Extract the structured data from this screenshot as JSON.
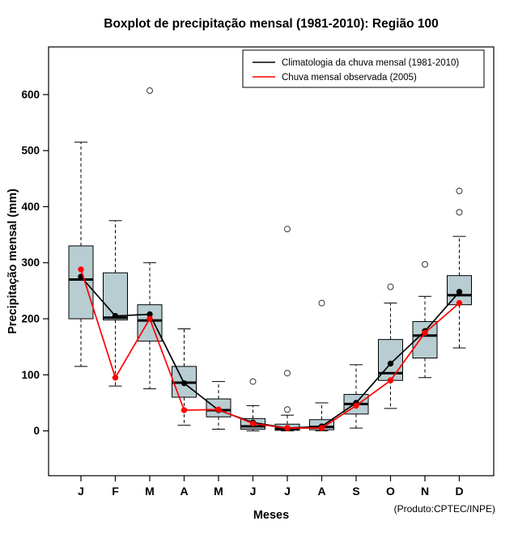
{
  "chart_data": {
    "type": "boxplot",
    "title": "Boxplot de precipitação mensal (1981-2010): Região 100",
    "xlabel": "Meses",
    "ylabel": "Precipitação mensal (mm)",
    "footnote": "(Produto:CPTEC/INPE)",
    "categories": [
      "J",
      "F",
      "M",
      "A",
      "M",
      "J",
      "J",
      "A",
      "S",
      "O",
      "N",
      "D"
    ],
    "yticks": [
      0,
      100,
      200,
      300,
      400,
      500,
      600
    ],
    "ylim": [
      -80,
      685
    ],
    "grid": false,
    "legend_position": "top-right",
    "box_fill": "#b8cdd2",
    "box_stroke": "#000000",
    "boxes": [
      {
        "month": "J",
        "q1": 200,
        "median": 270,
        "q3": 330,
        "whisker_low": 115,
        "whisker_high": 515,
        "outliers": []
      },
      {
        "month": "F",
        "q1": 198,
        "median": 202,
        "q3": 282,
        "whisker_low": 80,
        "whisker_high": 375,
        "outliers": []
      },
      {
        "month": "M",
        "q1": 160,
        "median": 197,
        "q3": 225,
        "whisker_low": 75,
        "whisker_high": 300,
        "outliers": [
          607
        ]
      },
      {
        "month": "A",
        "q1": 60,
        "median": 86,
        "q3": 115,
        "whisker_low": 10,
        "whisker_high": 182,
        "outliers": []
      },
      {
        "month": "M",
        "q1": 25,
        "median": 37,
        "q3": 57,
        "whisker_low": 3,
        "whisker_high": 88,
        "outliers": []
      },
      {
        "month": "J",
        "q1": 3,
        "median": 8,
        "q3": 22,
        "whisker_low": 0,
        "whisker_high": 45,
        "outliers": [
          88
        ]
      },
      {
        "month": "J",
        "q1": 1,
        "median": 4,
        "q3": 12,
        "whisker_low": 0,
        "whisker_high": 28,
        "outliers": [
          38,
          103,
          360
        ]
      },
      {
        "month": "A",
        "q1": 2,
        "median": 7,
        "q3": 20,
        "whisker_low": 0,
        "whisker_high": 50,
        "outliers": [
          228
        ]
      },
      {
        "month": "S",
        "q1": 30,
        "median": 48,
        "q3": 65,
        "whisker_low": 5,
        "whisker_high": 118,
        "outliers": []
      },
      {
        "month": "O",
        "q1": 90,
        "median": 103,
        "q3": 163,
        "whisker_low": 40,
        "whisker_high": 228,
        "outliers": [
          257
        ]
      },
      {
        "month": "N",
        "q1": 130,
        "median": 170,
        "q3": 195,
        "whisker_low": 95,
        "whisker_high": 240,
        "outliers": [
          297
        ]
      },
      {
        "month": "D",
        "q1": 225,
        "median": 242,
        "q3": 277,
        "whisker_low": 148,
        "whisker_high": 347,
        "outliers": [
          390,
          428
        ]
      }
    ],
    "series": [
      {
        "name": "Climatologia da chuva mensal (1981-2010)",
        "color": "#000000",
        "values": [
          275,
          205,
          208,
          85,
          37,
          15,
          5,
          8,
          50,
          120,
          178,
          248
        ]
      },
      {
        "name": "Chuva mensal observada (2005)",
        "color": "#ff0000",
        "values": [
          288,
          95,
          200,
          37,
          38,
          13,
          5,
          5,
          45,
          90,
          175,
          228
        ]
      }
    ]
  }
}
